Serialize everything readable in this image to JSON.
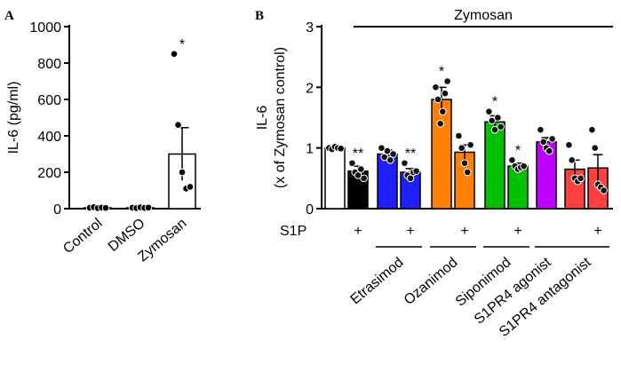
{
  "chart_data": [
    {
      "type": "bar",
      "panel_label": "A",
      "ylabel": "IL-6 (pg/ml)",
      "categories": [
        "Control",
        "DMSO",
        "Zymosan"
      ],
      "values": [
        5,
        5,
        300
      ],
      "errors": [
        2,
        2,
        145
      ],
      "points": [
        [
          5,
          8,
          3,
          6,
          4
        ],
        [
          5,
          3,
          7,
          4,
          6
        ],
        [
          850,
          460,
          200,
          110,
          120
        ]
      ],
      "annotations": [
        null,
        null,
        "*"
      ],
      "colors": [
        "#ffffff",
        "#ffffff",
        "#ffffff"
      ],
      "ylim": [
        0,
        1000
      ],
      "yticks": [
        0,
        200,
        400,
        600,
        800,
        1000
      ]
    },
    {
      "type": "bar",
      "panel_label": "B",
      "title": "Zymosan",
      "ylabel": [
        "IL-6",
        "(x of Zymosan control)"
      ],
      "row_label": "S1P",
      "s1p": [
        null,
        "+",
        null,
        "+",
        null,
        "+",
        null,
        "+",
        null,
        null,
        "+"
      ],
      "groups": [
        "Etrasimod",
        "Ozanimod",
        "Siponimod",
        "S1PR4 agonist",
        "S1PR4 antagonist"
      ],
      "values": [
        1.0,
        0.62,
        0.9,
        0.6,
        1.8,
        0.93,
        1.43,
        0.7,
        1.1,
        0.65,
        0.67
      ],
      "errors": [
        0.02,
        0.08,
        0.07,
        0.06,
        0.2,
        0.12,
        0.1,
        0.05,
        0.07,
        0.15,
        0.22
      ],
      "points": [
        [
          1.0,
          0.98,
          1.02,
          1.0,
          0.99
        ],
        [
          0.75,
          0.6,
          0.55,
          0.65,
          0.5
        ],
        [
          1.0,
          0.85,
          0.95,
          0.8,
          0.9
        ],
        [
          0.75,
          0.55,
          0.5,
          0.6,
          0.62
        ],
        [
          2.0,
          1.8,
          1.4,
          1.6,
          1.9,
          2.1
        ],
        [
          1.2,
          1.0,
          0.75,
          0.6,
          1.05
        ],
        [
          1.6,
          1.45,
          1.3,
          1.5,
          1.35
        ],
        [
          0.8,
          0.7,
          0.65,
          0.68,
          0.7
        ],
        [
          1.3,
          1.1,
          1.0,
          0.95,
          1.15
        ],
        [
          1.05,
          0.8,
          0.5,
          0.45,
          0.5
        ],
        [
          1.3,
          1.0,
          0.4,
          0.35,
          0.3
        ]
      ],
      "annotations": [
        null,
        "**",
        null,
        "**",
        "*",
        null,
        "*",
        "*",
        null,
        null,
        null
      ],
      "colors": [
        "#ffffff",
        "#000000",
        "#2020ff",
        "#2020ff",
        "#ff8000",
        "#ff8000",
        "#00c000",
        "#00c000",
        "#c000ff",
        "#ff4040",
        "#ff4040"
      ],
      "ylim": [
        0,
        3
      ],
      "yticks": [
        0,
        1,
        2,
        3
      ]
    }
  ]
}
